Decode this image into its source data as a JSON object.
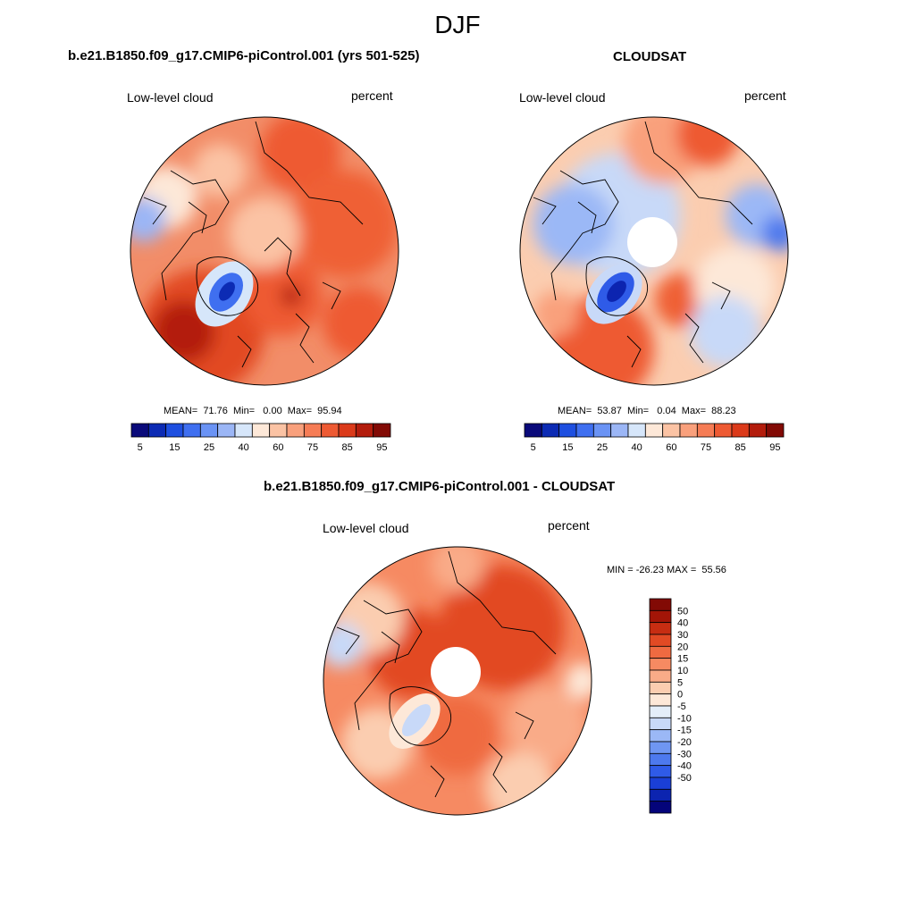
{
  "season": "DJF",
  "panels": {
    "model": {
      "title": "b.e21.B1850.f09_g17.CMIP6-piControl.001 (yrs 501-525)",
      "left_label": "Low-level cloud",
      "right_label": "percent",
      "stats": "MEAN=  71.76  Min=   0.00  Max=  95.94"
    },
    "obs": {
      "title": "CLOUDSAT",
      "left_label": "Low-level cloud",
      "right_label": "percent",
      "stats": "MEAN=  53.87  Min=   0.04  Max=  88.23"
    },
    "diff": {
      "title": "b.e21.B1850.f09_g17.CMIP6-piControl.001 - CLOUDSAT",
      "left_label": "Low-level cloud",
      "right_label": "percent",
      "minmax": "MIN = -26.23 MAX =  55.56"
    }
  },
  "colorbars": {
    "mean": {
      "colors": [
        "#0a0a7a",
        "#0c2bb4",
        "#1e4fe0",
        "#3f6ff0",
        "#6a93f5",
        "#9bb6f6",
        "#d6e6fa",
        "#fde8d8",
        "#fbc3a4",
        "#f9a07c",
        "#f67c55",
        "#ee5a33",
        "#db3a1a",
        "#b31c0c",
        "#820a05"
      ],
      "labels": [
        "5",
        "15",
        "25",
        "40",
        "60",
        "75",
        "85",
        "95"
      ]
    },
    "diff": {
      "colors": [
        "#04047a",
        "#0c24b0",
        "#1a3fd6",
        "#2f5be8",
        "#4d79ee",
        "#6f96f2",
        "#9bb8f6",
        "#c8d9f8",
        "#e4eef9",
        "#fde8d8",
        "#fbcdb0",
        "#f9ab88",
        "#f68a62",
        "#ef6a41",
        "#e24a24",
        "#c72d12",
        "#a31507",
        "#820a05"
      ],
      "labels": [
        "50",
        "40",
        "30",
        "20",
        "15",
        "10",
        "5",
        "0",
        "-5",
        "-10",
        "-15",
        "-20",
        "-30",
        "-40",
        "-50"
      ]
    }
  }
}
